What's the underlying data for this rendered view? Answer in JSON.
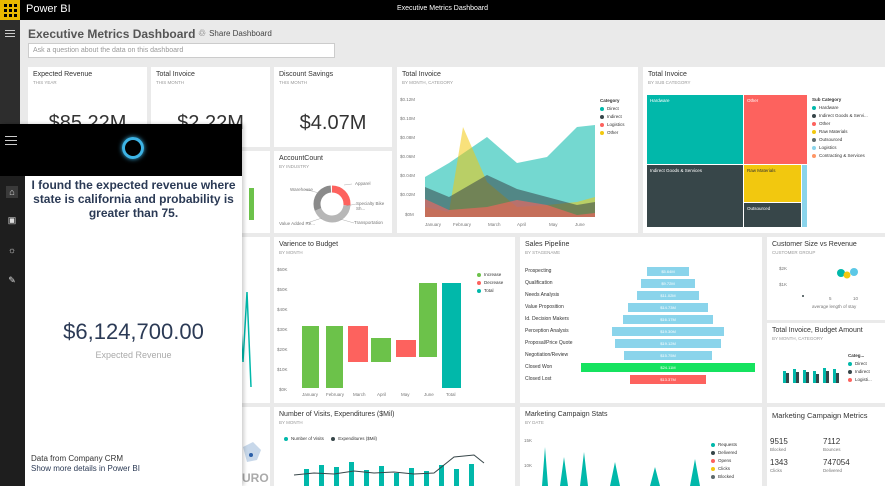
{
  "app": {
    "name": "Power BI",
    "page_title": "Executive Metrics Dashboard"
  },
  "header": {
    "title": "Executive Metrics Dashboard",
    "share_label": "Share Dashboard",
    "qna_placeholder": "Ask a question about the data on this dashboard"
  },
  "tiles": {
    "expected_revenue": {
      "title": "Expected Revenue",
      "subtitle": "THIS YEAR",
      "value": "$85.22M"
    },
    "total_invoice_card": {
      "title": "Total Invoice",
      "subtitle": "THIS MONTH",
      "value": "$2.22M"
    },
    "discount_savings": {
      "title": "Discount Savings",
      "subtitle": "THIS MONTH",
      "value": "$4.07M"
    },
    "account_count": {
      "title": "AccountCount",
      "subtitle": "BY INDUSTRY",
      "labels": [
        "Apparel",
        "Warehouse",
        "Specialty Bike Sh...",
        "Value Added Re...",
        "Transportation"
      ]
    },
    "total_invoice_area": {
      "title": "Total Invoice",
      "subtitle": "BY MONTH, CATEGORY",
      "y_ticks": [
        "$0.12M",
        "$0.10M",
        "$0.08M",
        "$0.06M",
        "$0.04M",
        "$0.02M",
        "$0M"
      ],
      "x_ticks": [
        "January",
        "February",
        "March",
        "April",
        "May",
        "June"
      ],
      "legend_title": "Category",
      "legend": [
        "Direct",
        "Indirect",
        "Logistics",
        "Other"
      ]
    },
    "total_invoice_treemap": {
      "title": "Total Invoice",
      "subtitle": "BY SUB CATEGORY",
      "blocks": [
        "Hardware",
        "Other",
        "Indirect Goods & Services",
        "Raw Materials",
        "Outsourced"
      ],
      "legend_title": "Sub Category",
      "legend": [
        "Hardware",
        "Indirect Goods & Servi...",
        "Other",
        "Raw Materials",
        "Outsourced",
        "Logistics",
        "Contracting & Services"
      ]
    },
    "variance": {
      "title": "Varience to Budget",
      "subtitle": "BY MONTH",
      "y_ticks": [
        "$60K",
        "$50K",
        "$40K",
        "$30K",
        "$20K",
        "$10K",
        "$0K"
      ],
      "x_ticks": [
        "January",
        "February",
        "March",
        "April",
        "May",
        "June",
        "Total"
      ],
      "legend": [
        "Increase",
        "Decrease",
        "Total"
      ]
    },
    "pipeline": {
      "title": "Sales Pipeline",
      "subtitle": "BY STAGENAME",
      "stages": [
        "Prospecting",
        "Qualification",
        "Needs Analysis",
        "Value Proposition",
        "Id. Decision Makers",
        "Perception Analysis",
        "Proposal/Price Quote",
        "Negotiation/Review",
        "Closed Won",
        "Closed Lost"
      ],
      "values": [
        "$5.64M",
        "$9.72M",
        "$11.02M",
        "$14.73M",
        "$16.17M",
        "$19.30M",
        "$19.12M",
        "$15.75M",
        "$24.11M",
        "$13.37M"
      ]
    },
    "customer_size": {
      "title": "Customer Size vs Revenue",
      "subtitle": "CUSTOMER GROUP",
      "y_ticks": [
        "$2K",
        "$1K"
      ],
      "x_ticks": [
        "5",
        "10"
      ],
      "xlabel": "average length of stay"
    },
    "invoice_budget": {
      "title": "Total Invoice, Budget Amount",
      "subtitle": "BY MONTH, CATEGORY",
      "legend_title": "Categ...",
      "legend": [
        "Direct",
        "Indirect",
        "Logisti..."
      ]
    },
    "visits": {
      "title": "Number of Visits, Expenditures ($Mil)",
      "subtitle": "BY MONTH",
      "legend": [
        "Number of Visits",
        "Expenditures ($Mil)"
      ]
    },
    "campaign_stats": {
      "title": "Marketing Campaign Stats",
      "subtitle": "BY DATE",
      "y_ticks": [
        "15K",
        "10K"
      ],
      "legend": [
        "Requests",
        "Delivered",
        "Opens",
        "Clicks",
        "Blocked"
      ]
    },
    "campaign_metrics": {
      "title": "Marketing Campaign Metrics",
      "metrics": [
        {
          "v": "9515",
          "l": "Blocked"
        },
        {
          "v": "7112",
          "l": "Bounces"
        },
        {
          "v": "1343",
          "l": "Clicks"
        },
        {
          "v": "747054",
          "l": "Delivered"
        }
      ]
    },
    "map_fragment": {
      "text": "URO"
    }
  },
  "cortana": {
    "message": "I found the expected revenue where state is california and probability is greater than 75.",
    "value": "$6,124,700.00",
    "caption": "Expected Revenue",
    "source": "Data from Company CRM",
    "link": "Show more details in Power BI"
  },
  "colors": {
    "teal": "#01b8aa",
    "dark": "#374649",
    "red": "#fd625e",
    "yellow": "#f2c80f",
    "green": "#6cc24a",
    "skyblue": "#8ad4eb"
  }
}
